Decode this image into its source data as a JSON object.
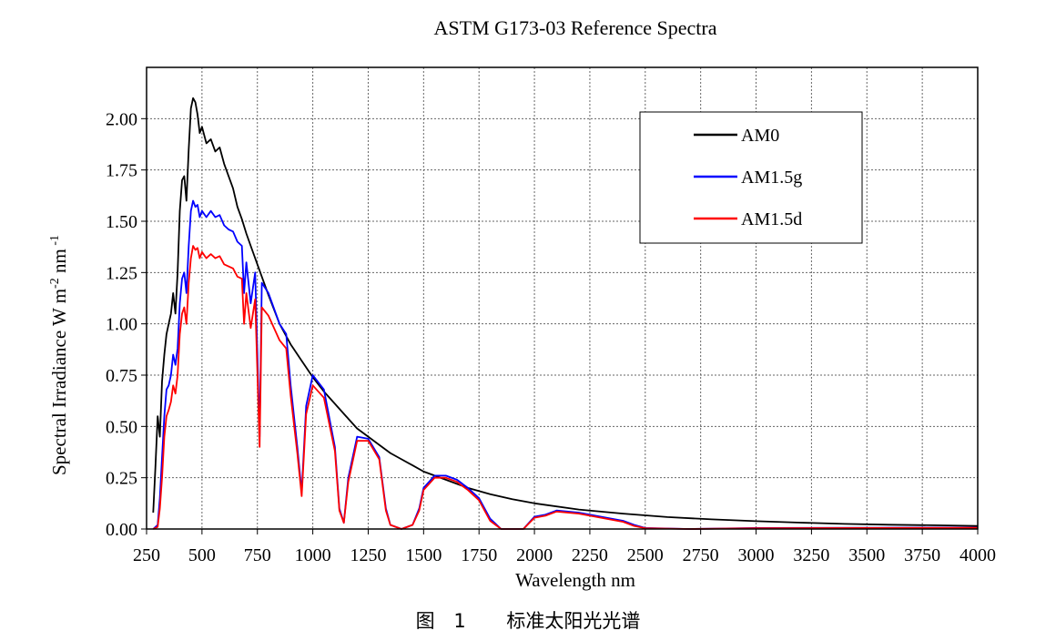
{
  "caption": {
    "fig_label": "图",
    "fig_number": "1",
    "text": "标准太阳光光谱"
  },
  "chart_data": {
    "type": "line",
    "title": "ASTM G173-03 Reference Spectra",
    "xlabel": "Wavelength nm",
    "ylabel_main": "Spectral Irradiance W m",
    "ylabel_sup1": "-2",
    "ylabel_mid": " nm",
    "ylabel_sup2": " -1",
    "xlim": [
      250,
      4000
    ],
    "ylim": [
      0,
      2.25
    ],
    "xticks": [
      250,
      500,
      750,
      1000,
      1250,
      1500,
      1750,
      2000,
      2250,
      2500,
      2750,
      3000,
      3250,
      3500,
      3750,
      4000
    ],
    "yticks": [
      0,
      0.25,
      0.5,
      0.75,
      1.0,
      1.25,
      1.5,
      1.75,
      2.0
    ],
    "ytick_labels": [
      "0.00",
      "0.25",
      "0.50",
      "0.75",
      "1.00",
      "1.25",
      "1.50",
      "1.75",
      "2.00"
    ],
    "grid": true,
    "legend_position": "top-right",
    "series": [
      {
        "name": "AM0",
        "color": "#000000",
        "points": [
          [
            280,
            0.08
          ],
          [
            290,
            0.3
          ],
          [
            300,
            0.55
          ],
          [
            310,
            0.45
          ],
          [
            320,
            0.72
          ],
          [
            330,
            0.85
          ],
          [
            340,
            0.95
          ],
          [
            350,
            1.0
          ],
          [
            360,
            1.05
          ],
          [
            370,
            1.15
          ],
          [
            380,
            1.05
          ],
          [
            390,
            1.25
          ],
          [
            400,
            1.55
          ],
          [
            410,
            1.7
          ],
          [
            420,
            1.72
          ],
          [
            430,
            1.6
          ],
          [
            440,
            1.85
          ],
          [
            450,
            2.05
          ],
          [
            460,
            2.1
          ],
          [
            470,
            2.08
          ],
          [
            480,
            2.02
          ],
          [
            490,
            1.93
          ],
          [
            500,
            1.96
          ],
          [
            520,
            1.88
          ],
          [
            540,
            1.9
          ],
          [
            560,
            1.84
          ],
          [
            580,
            1.86
          ],
          [
            600,
            1.78
          ],
          [
            620,
            1.72
          ],
          [
            640,
            1.66
          ],
          [
            660,
            1.57
          ],
          [
            680,
            1.51
          ],
          [
            700,
            1.44
          ],
          [
            720,
            1.38
          ],
          [
            750,
            1.29
          ],
          [
            800,
            1.14
          ],
          [
            850,
            1.0
          ],
          [
            900,
            0.9
          ],
          [
            950,
            0.82
          ],
          [
            1000,
            0.74
          ],
          [
            1050,
            0.67
          ],
          [
            1100,
            0.61
          ],
          [
            1150,
            0.55
          ],
          [
            1200,
            0.49
          ],
          [
            1250,
            0.45
          ],
          [
            1300,
            0.41
          ],
          [
            1350,
            0.37
          ],
          [
            1400,
            0.34
          ],
          [
            1450,
            0.31
          ],
          [
            1500,
            0.28
          ],
          [
            1600,
            0.24
          ],
          [
            1700,
            0.2
          ],
          [
            1800,
            0.17
          ],
          [
            1900,
            0.145
          ],
          [
            2000,
            0.125
          ],
          [
            2200,
            0.095
          ],
          [
            2400,
            0.075
          ],
          [
            2600,
            0.058
          ],
          [
            2800,
            0.047
          ],
          [
            3000,
            0.038
          ],
          [
            3200,
            0.031
          ],
          [
            3400,
            0.025
          ],
          [
            3600,
            0.021
          ],
          [
            3800,
            0.018
          ],
          [
            4000,
            0.015
          ]
        ]
      },
      {
        "name": "AM1.5g",
        "color": "#0000ff",
        "points": [
          [
            280,
            0
          ],
          [
            300,
            0.02
          ],
          [
            310,
            0.15
          ],
          [
            320,
            0.35
          ],
          [
            330,
            0.55
          ],
          [
            340,
            0.68
          ],
          [
            350,
            0.7
          ],
          [
            360,
            0.75
          ],
          [
            370,
            0.85
          ],
          [
            380,
            0.8
          ],
          [
            390,
            0.88
          ],
          [
            400,
            1.1
          ],
          [
            410,
            1.22
          ],
          [
            420,
            1.25
          ],
          [
            430,
            1.15
          ],
          [
            440,
            1.38
          ],
          [
            450,
            1.55
          ],
          [
            460,
            1.6
          ],
          [
            470,
            1.57
          ],
          [
            480,
            1.58
          ],
          [
            490,
            1.52
          ],
          [
            500,
            1.55
          ],
          [
            520,
            1.52
          ],
          [
            540,
            1.55
          ],
          [
            560,
            1.52
          ],
          [
            580,
            1.53
          ],
          [
            600,
            1.48
          ],
          [
            620,
            1.46
          ],
          [
            640,
            1.45
          ],
          [
            660,
            1.4
          ],
          [
            680,
            1.38
          ],
          [
            690,
            1.15
          ],
          [
            700,
            1.3
          ],
          [
            720,
            1.1
          ],
          [
            740,
            1.25
          ],
          [
            760,
            0.45
          ],
          [
            770,
            1.2
          ],
          [
            800,
            1.15
          ],
          [
            850,
            1.0
          ],
          [
            880,
            0.95
          ],
          [
            900,
            0.7
          ],
          [
            930,
            0.4
          ],
          [
            950,
            0.18
          ],
          [
            970,
            0.6
          ],
          [
            1000,
            0.75
          ],
          [
            1050,
            0.68
          ],
          [
            1100,
            0.4
          ],
          [
            1120,
            0.1
          ],
          [
            1140,
            0.03
          ],
          [
            1160,
            0.25
          ],
          [
            1200,
            0.45
          ],
          [
            1250,
            0.44
          ],
          [
            1300,
            0.35
          ],
          [
            1330,
            0.1
          ],
          [
            1350,
            0.02
          ],
          [
            1400,
            0
          ],
          [
            1450,
            0.02
          ],
          [
            1480,
            0.1
          ],
          [
            1500,
            0.2
          ],
          [
            1550,
            0.26
          ],
          [
            1600,
            0.26
          ],
          [
            1650,
            0.24
          ],
          [
            1700,
            0.2
          ],
          [
            1750,
            0.15
          ],
          [
            1800,
            0.05
          ],
          [
            1850,
            0
          ],
          [
            1950,
            0
          ],
          [
            2000,
            0.06
          ],
          [
            2050,
            0.07
          ],
          [
            2100,
            0.09
          ],
          [
            2200,
            0.08
          ],
          [
            2300,
            0.06
          ],
          [
            2400,
            0.04
          ],
          [
            2450,
            0.02
          ],
          [
            2500,
            0.005
          ],
          [
            2700,
            0
          ],
          [
            3000,
            0.005
          ],
          [
            3500,
            0.006
          ],
          [
            4000,
            0.007
          ]
        ]
      },
      {
        "name": "AM1.5d",
        "color": "#ff0000",
        "points": [
          [
            280,
            0
          ],
          [
            300,
            0.01
          ],
          [
            310,
            0.1
          ],
          [
            320,
            0.25
          ],
          [
            330,
            0.45
          ],
          [
            340,
            0.55
          ],
          [
            350,
            0.58
          ],
          [
            360,
            0.62
          ],
          [
            370,
            0.7
          ],
          [
            380,
            0.66
          ],
          [
            390,
            0.75
          ],
          [
            400,
            0.95
          ],
          [
            410,
            1.05
          ],
          [
            420,
            1.08
          ],
          [
            430,
            1.0
          ],
          [
            440,
            1.2
          ],
          [
            450,
            1.32
          ],
          [
            460,
            1.38
          ],
          [
            470,
            1.36
          ],
          [
            480,
            1.37
          ],
          [
            490,
            1.32
          ],
          [
            500,
            1.35
          ],
          [
            520,
            1.32
          ],
          [
            540,
            1.34
          ],
          [
            560,
            1.32
          ],
          [
            580,
            1.33
          ],
          [
            600,
            1.29
          ],
          [
            620,
            1.28
          ],
          [
            640,
            1.27
          ],
          [
            660,
            1.23
          ],
          [
            680,
            1.22
          ],
          [
            690,
            1.0
          ],
          [
            700,
            1.15
          ],
          [
            720,
            0.98
          ],
          [
            740,
            1.12
          ],
          [
            760,
            0.4
          ],
          [
            770,
            1.08
          ],
          [
            800,
            1.04
          ],
          [
            850,
            0.92
          ],
          [
            880,
            0.88
          ],
          [
            900,
            0.65
          ],
          [
            930,
            0.37
          ],
          [
            950,
            0.16
          ],
          [
            970,
            0.56
          ],
          [
            1000,
            0.7
          ],
          [
            1050,
            0.64
          ],
          [
            1100,
            0.38
          ],
          [
            1120,
            0.09
          ],
          [
            1140,
            0.03
          ],
          [
            1160,
            0.23
          ],
          [
            1200,
            0.43
          ],
          [
            1250,
            0.43
          ],
          [
            1300,
            0.34
          ],
          [
            1330,
            0.09
          ],
          [
            1350,
            0.02
          ],
          [
            1400,
            0
          ],
          [
            1450,
            0.02
          ],
          [
            1480,
            0.09
          ],
          [
            1500,
            0.19
          ],
          [
            1550,
            0.25
          ],
          [
            1600,
            0.25
          ],
          [
            1650,
            0.23
          ],
          [
            1700,
            0.19
          ],
          [
            1750,
            0.14
          ],
          [
            1800,
            0.04
          ],
          [
            1850,
            0
          ],
          [
            1950,
            0
          ],
          [
            2000,
            0.055
          ],
          [
            2050,
            0.065
          ],
          [
            2100,
            0.085
          ],
          [
            2200,
            0.075
          ],
          [
            2300,
            0.055
          ],
          [
            2400,
            0.035
          ],
          [
            2450,
            0.015
          ],
          [
            2500,
            0.004
          ],
          [
            2700,
            0
          ],
          [
            3000,
            0.004
          ],
          [
            3500,
            0.005
          ],
          [
            4000,
            0.006
          ]
        ]
      }
    ]
  }
}
